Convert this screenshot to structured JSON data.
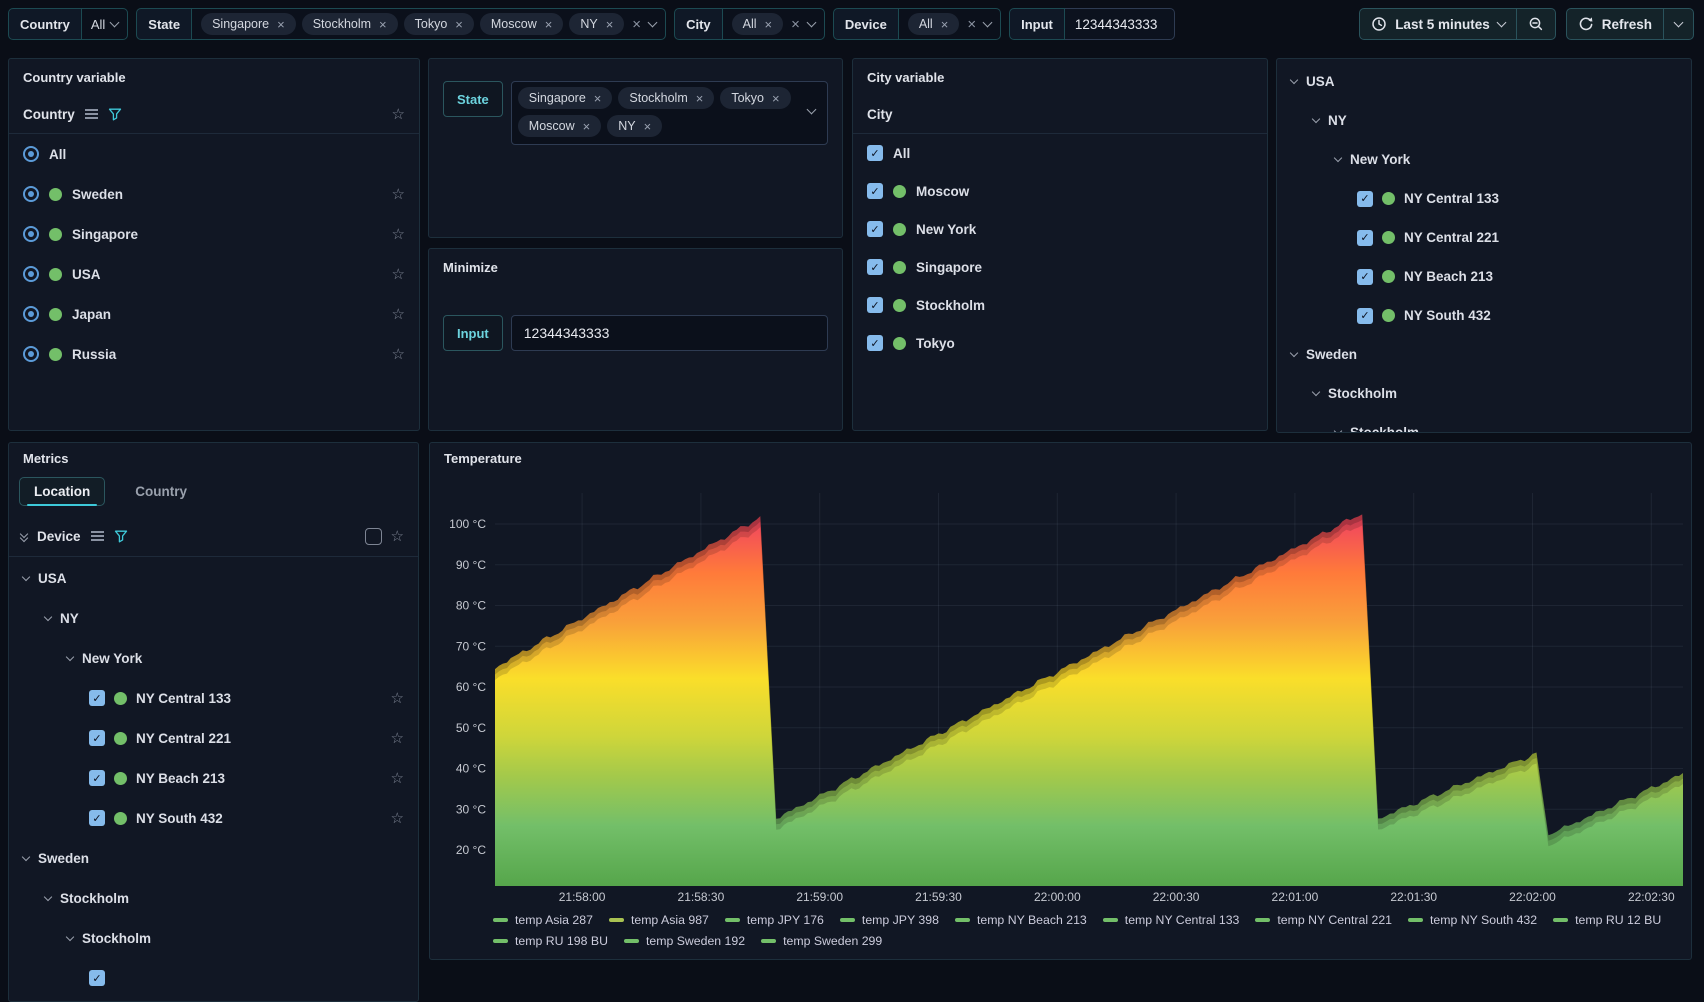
{
  "toolbar": {
    "filters": [
      {
        "name": "country",
        "label": "Country",
        "type": "select",
        "value": "All"
      },
      {
        "name": "state",
        "label": "State",
        "type": "multi",
        "values": [
          "Singapore",
          "Stockholm",
          "Tokyo",
          "Moscow",
          "NY"
        ]
      },
      {
        "name": "city",
        "label": "City",
        "type": "multi",
        "values": [
          "All"
        ]
      },
      {
        "name": "device",
        "label": "Device",
        "type": "multi",
        "values": [
          "All"
        ]
      },
      {
        "name": "input",
        "label": "Input",
        "type": "text",
        "value": "12344343333"
      }
    ],
    "time_range": {
      "label": "Last 5 minutes",
      "icon": "clock-icon"
    },
    "zoom_out_icon": "magnifier-minus-icon",
    "refresh": {
      "label": "Refresh",
      "icon": "refresh-icon"
    }
  },
  "country_panel": {
    "title": "Country variable",
    "variable": "Country",
    "options": [
      {
        "label": "All",
        "dot": false,
        "star": false
      },
      {
        "label": "Sweden",
        "dot": true,
        "star": true
      },
      {
        "label": "Singapore",
        "dot": true,
        "star": true
      },
      {
        "label": "USA",
        "dot": true,
        "star": true
      },
      {
        "label": "Japan",
        "dot": true,
        "star": true
      },
      {
        "label": "Russia",
        "dot": true,
        "star": true
      }
    ]
  },
  "state_panel": {
    "label": "State",
    "selected": [
      "Singapore",
      "Stockholm",
      "Tokyo",
      "Moscow",
      "NY"
    ]
  },
  "minimize_panel": {
    "title": "Minimize",
    "input_label": "Input",
    "input_value": "12344343333"
  },
  "city_panel": {
    "title": "City variable",
    "variable": "City",
    "options": [
      {
        "label": "All",
        "dot": false,
        "checked": true
      },
      {
        "label": "Moscow",
        "dot": true,
        "checked": true
      },
      {
        "label": "New York",
        "dot": true,
        "checked": true
      },
      {
        "label": "Singapore",
        "dot": true,
        "checked": true
      },
      {
        "label": "Stockholm",
        "dot": true,
        "checked": true
      },
      {
        "label": "Tokyo",
        "dot": true,
        "checked": true
      }
    ]
  },
  "device_tree": {
    "nodes": [
      {
        "label": "USA",
        "level": 0,
        "kind": "group"
      },
      {
        "label": "NY",
        "level": 1,
        "kind": "group"
      },
      {
        "label": "New York",
        "level": 2,
        "kind": "group"
      },
      {
        "label": "NY Central 133",
        "level": 3,
        "kind": "device",
        "checked": true
      },
      {
        "label": "NY Central 221",
        "level": 3,
        "kind": "device",
        "checked": true
      },
      {
        "label": "NY Beach 213",
        "level": 3,
        "kind": "device",
        "checked": true
      },
      {
        "label": "NY South 432",
        "level": 3,
        "kind": "device",
        "checked": true
      },
      {
        "label": "Sweden",
        "level": 0,
        "kind": "group"
      },
      {
        "label": "Stockholm",
        "level": 1,
        "kind": "group"
      },
      {
        "label": "Stockholm",
        "level": 2,
        "kind": "group"
      },
      {
        "label": "",
        "level": 3,
        "kind": "device",
        "checked": true
      }
    ]
  },
  "metrics_panel": {
    "title": "Metrics",
    "tabs": [
      {
        "label": "Location",
        "active": true
      },
      {
        "label": "Country",
        "active": false
      }
    ],
    "variable": "Device"
  },
  "temperature_panel": {
    "title": "Temperature"
  },
  "chart_data": {
    "type": "area",
    "title": "Temperature",
    "xlabel": "",
    "ylabel": "",
    "x_start": "21:57:38",
    "x_end": "22:02:38",
    "xticks": [
      "21:58:00",
      "21:58:30",
      "21:59:00",
      "21:59:30",
      "22:00:00",
      "22:00:30",
      "22:01:00",
      "22:01:30",
      "22:02:00",
      "22:02:30"
    ],
    "yticks": [
      100,
      90,
      80,
      70,
      60,
      50,
      40,
      30,
      20
    ],
    "y_unit": "°C",
    "ylim": [
      11,
      108
    ],
    "grid": true,
    "legend_position": "bottom",
    "envelope_points": [
      [
        "21:57:38",
        62
      ],
      [
        "21:58:45",
        99
      ],
      [
        "21:58:49",
        25
      ],
      [
        "22:01:17",
        100
      ],
      [
        "22:01:21",
        25
      ],
      [
        "22:02:01",
        41
      ],
      [
        "22:02:04",
        21
      ],
      [
        "22:02:38",
        36
      ]
    ],
    "overlapping_series_count": 12,
    "gradient_stops": [
      [
        100,
        "#f2495c"
      ],
      [
        88,
        "#ff7a3a"
      ],
      [
        76,
        "#f9a03a"
      ],
      [
        62,
        "#fade2a"
      ],
      [
        48,
        "#cfd63a"
      ],
      [
        38,
        "#a3c94b"
      ],
      [
        26,
        "#73bf69"
      ],
      [
        11,
        "#56a64b"
      ]
    ],
    "series": [
      {
        "name": "temp Asia 287",
        "color": "#73bf69"
      },
      {
        "name": "temp Asia 987",
        "color": "#a9c252"
      },
      {
        "name": "temp JPY 176",
        "color": "#73bf69"
      },
      {
        "name": "temp JPY 398",
        "color": "#73bf69"
      },
      {
        "name": "temp NY Beach 213",
        "color": "#73bf69"
      },
      {
        "name": "temp NY Central 133",
        "color": "#73bf69"
      },
      {
        "name": "temp NY Central 221",
        "color": "#73bf69"
      },
      {
        "name": "temp NY South 432",
        "color": "#73bf69"
      },
      {
        "name": "temp RU 12 BU",
        "color": "#73bf69"
      },
      {
        "name": "temp RU 198 BU",
        "color": "#73bf69"
      },
      {
        "name": "temp Sweden 192",
        "color": "#73bf69"
      },
      {
        "name": "temp Sweden 299",
        "color": "#73bf69"
      }
    ],
    "legend_rows": [
      9,
      3
    ]
  }
}
